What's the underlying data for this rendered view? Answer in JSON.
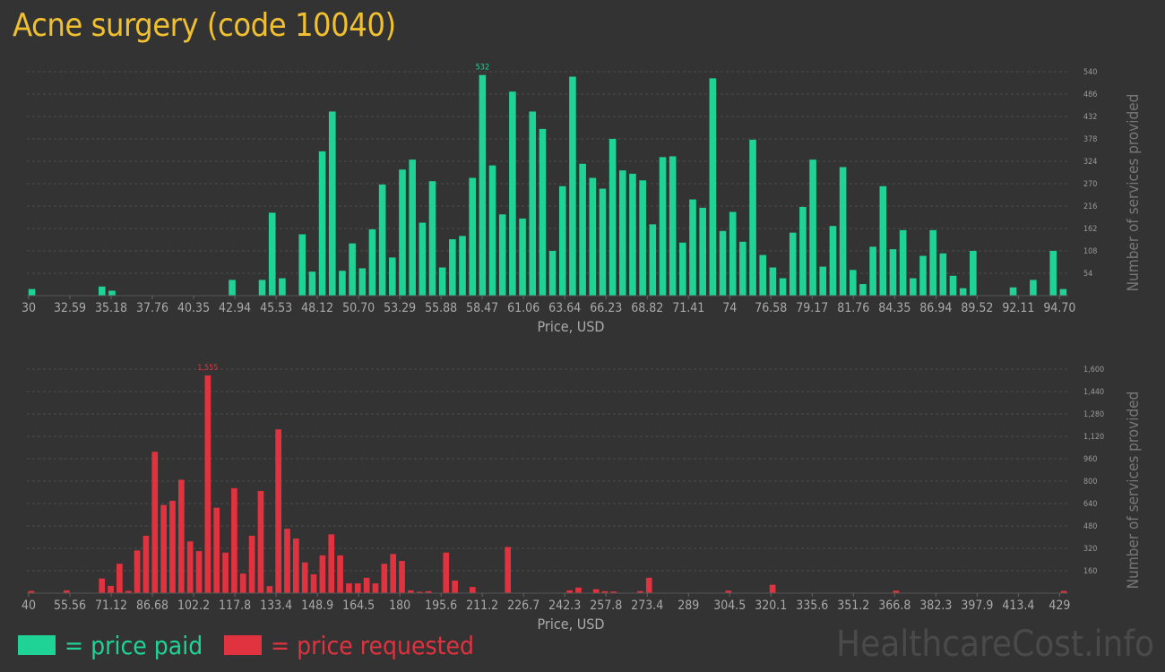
{
  "title": "Acne surgery (code 10040)",
  "legend": {
    "paid": {
      "swatch_color": "#1fd396",
      "label": "= price paid"
    },
    "requested": {
      "swatch_color": "#e0323f",
      "label": "= price requested"
    }
  },
  "watermark": "HealthcareCost.info",
  "chart_data": [
    {
      "type": "bar",
      "name": "price paid",
      "color": "#1fd396",
      "xlabel": "Price, USD",
      "ylabel": "Number of services provided",
      "x_range": [
        30,
        94.7
      ],
      "ylim": [
        0,
        540
      ],
      "x_ticks": [
        "30",
        "32.59",
        "35.18",
        "37.76",
        "40.35",
        "42.94",
        "45.53",
        "48.12",
        "50.70",
        "53.29",
        "55.88",
        "58.47",
        "61.06",
        "63.64",
        "66.23",
        "68.82",
        "71.41",
        "74",
        "76.58",
        "79.17",
        "81.76",
        "84.35",
        "86.94",
        "89.52",
        "92.11",
        "94.70"
      ],
      "y_ticks": [
        "54",
        "108",
        "162",
        "216",
        "270",
        "324",
        "378",
        "432",
        "486",
        "540"
      ],
      "peak_label": "532",
      "grid": true,
      "values": [
        16,
        0,
        0,
        0,
        0,
        0,
        0,
        22,
        12,
        0,
        0,
        0,
        0,
        0,
        0,
        0,
        0,
        0,
        0,
        0,
        38,
        0,
        0,
        38,
        200,
        42,
        0,
        148,
        58,
        348,
        444,
        60,
        126,
        66,
        160,
        268,
        92,
        304,
        328,
        176,
        276,
        68,
        136,
        144,
        284,
        532,
        314,
        196,
        492,
        186,
        444,
        402,
        108,
        264,
        528,
        318,
        284,
        258,
        378,
        302,
        294,
        278,
        172,
        334,
        336,
        128,
        232,
        212,
        524,
        156,
        202,
        130,
        376,
        98,
        68,
        42,
        152,
        214,
        328,
        70,
        168,
        310,
        62,
        28,
        118,
        264,
        112,
        158,
        42,
        96,
        158,
        102,
        48,
        18,
        108,
        0,
        0,
        0,
        20,
        0,
        38,
        0,
        108,
        16
      ]
    },
    {
      "type": "bar",
      "name": "price requested",
      "color": "#e0323f",
      "xlabel": "Price, USD",
      "ylabel": "Number of services provided",
      "x_range": [
        40,
        429
      ],
      "ylim": [
        0,
        1600
      ],
      "x_ticks": [
        "40",
        "55.56",
        "71.12",
        "86.68",
        "102.2",
        "117.8",
        "133.4",
        "148.9",
        "164.5",
        "180",
        "195.6",
        "211.2",
        "226.7",
        "242.3",
        "257.8",
        "273.4",
        "289",
        "304.5",
        "320.1",
        "335.6",
        "351.2",
        "366.8",
        "382.3",
        "397.9",
        "413.4",
        "429"
      ],
      "y_ticks": [
        "160",
        "320",
        "480",
        "640",
        "800",
        "960",
        "1,120",
        "1,280",
        "1,440",
        "1,600"
      ],
      "peak_label": "1,555",
      "grid": true,
      "values": [
        16,
        0,
        0,
        0,
        20,
        0,
        0,
        0,
        105,
        52,
        210,
        16,
        305,
        410,
        1010,
        630,
        660,
        810,
        370,
        300,
        1555,
        610,
        290,
        750,
        140,
        410,
        730,
        50,
        1170,
        460,
        390,
        220,
        135,
        270,
        420,
        270,
        70,
        70,
        110,
        70,
        210,
        280,
        230,
        20,
        10,
        14,
        0,
        290,
        90,
        0,
        44,
        0,
        0,
        0,
        330,
        0,
        0,
        0,
        0,
        0,
        0,
        20,
        40,
        0,
        28,
        14,
        12,
        0,
        0,
        15,
        110,
        0,
        0,
        0,
        0,
        0,
        0,
        0,
        0,
        18,
        0,
        0,
        0,
        0,
        60,
        0,
        0,
        0,
        0,
        0,
        0,
        0,
        0,
        0,
        0,
        0,
        0,
        0,
        18,
        0,
        0,
        0,
        0,
        0,
        0,
        0,
        0,
        0,
        0,
        0,
        0,
        0,
        0,
        0,
        0,
        0,
        0,
        16
      ]
    }
  ]
}
